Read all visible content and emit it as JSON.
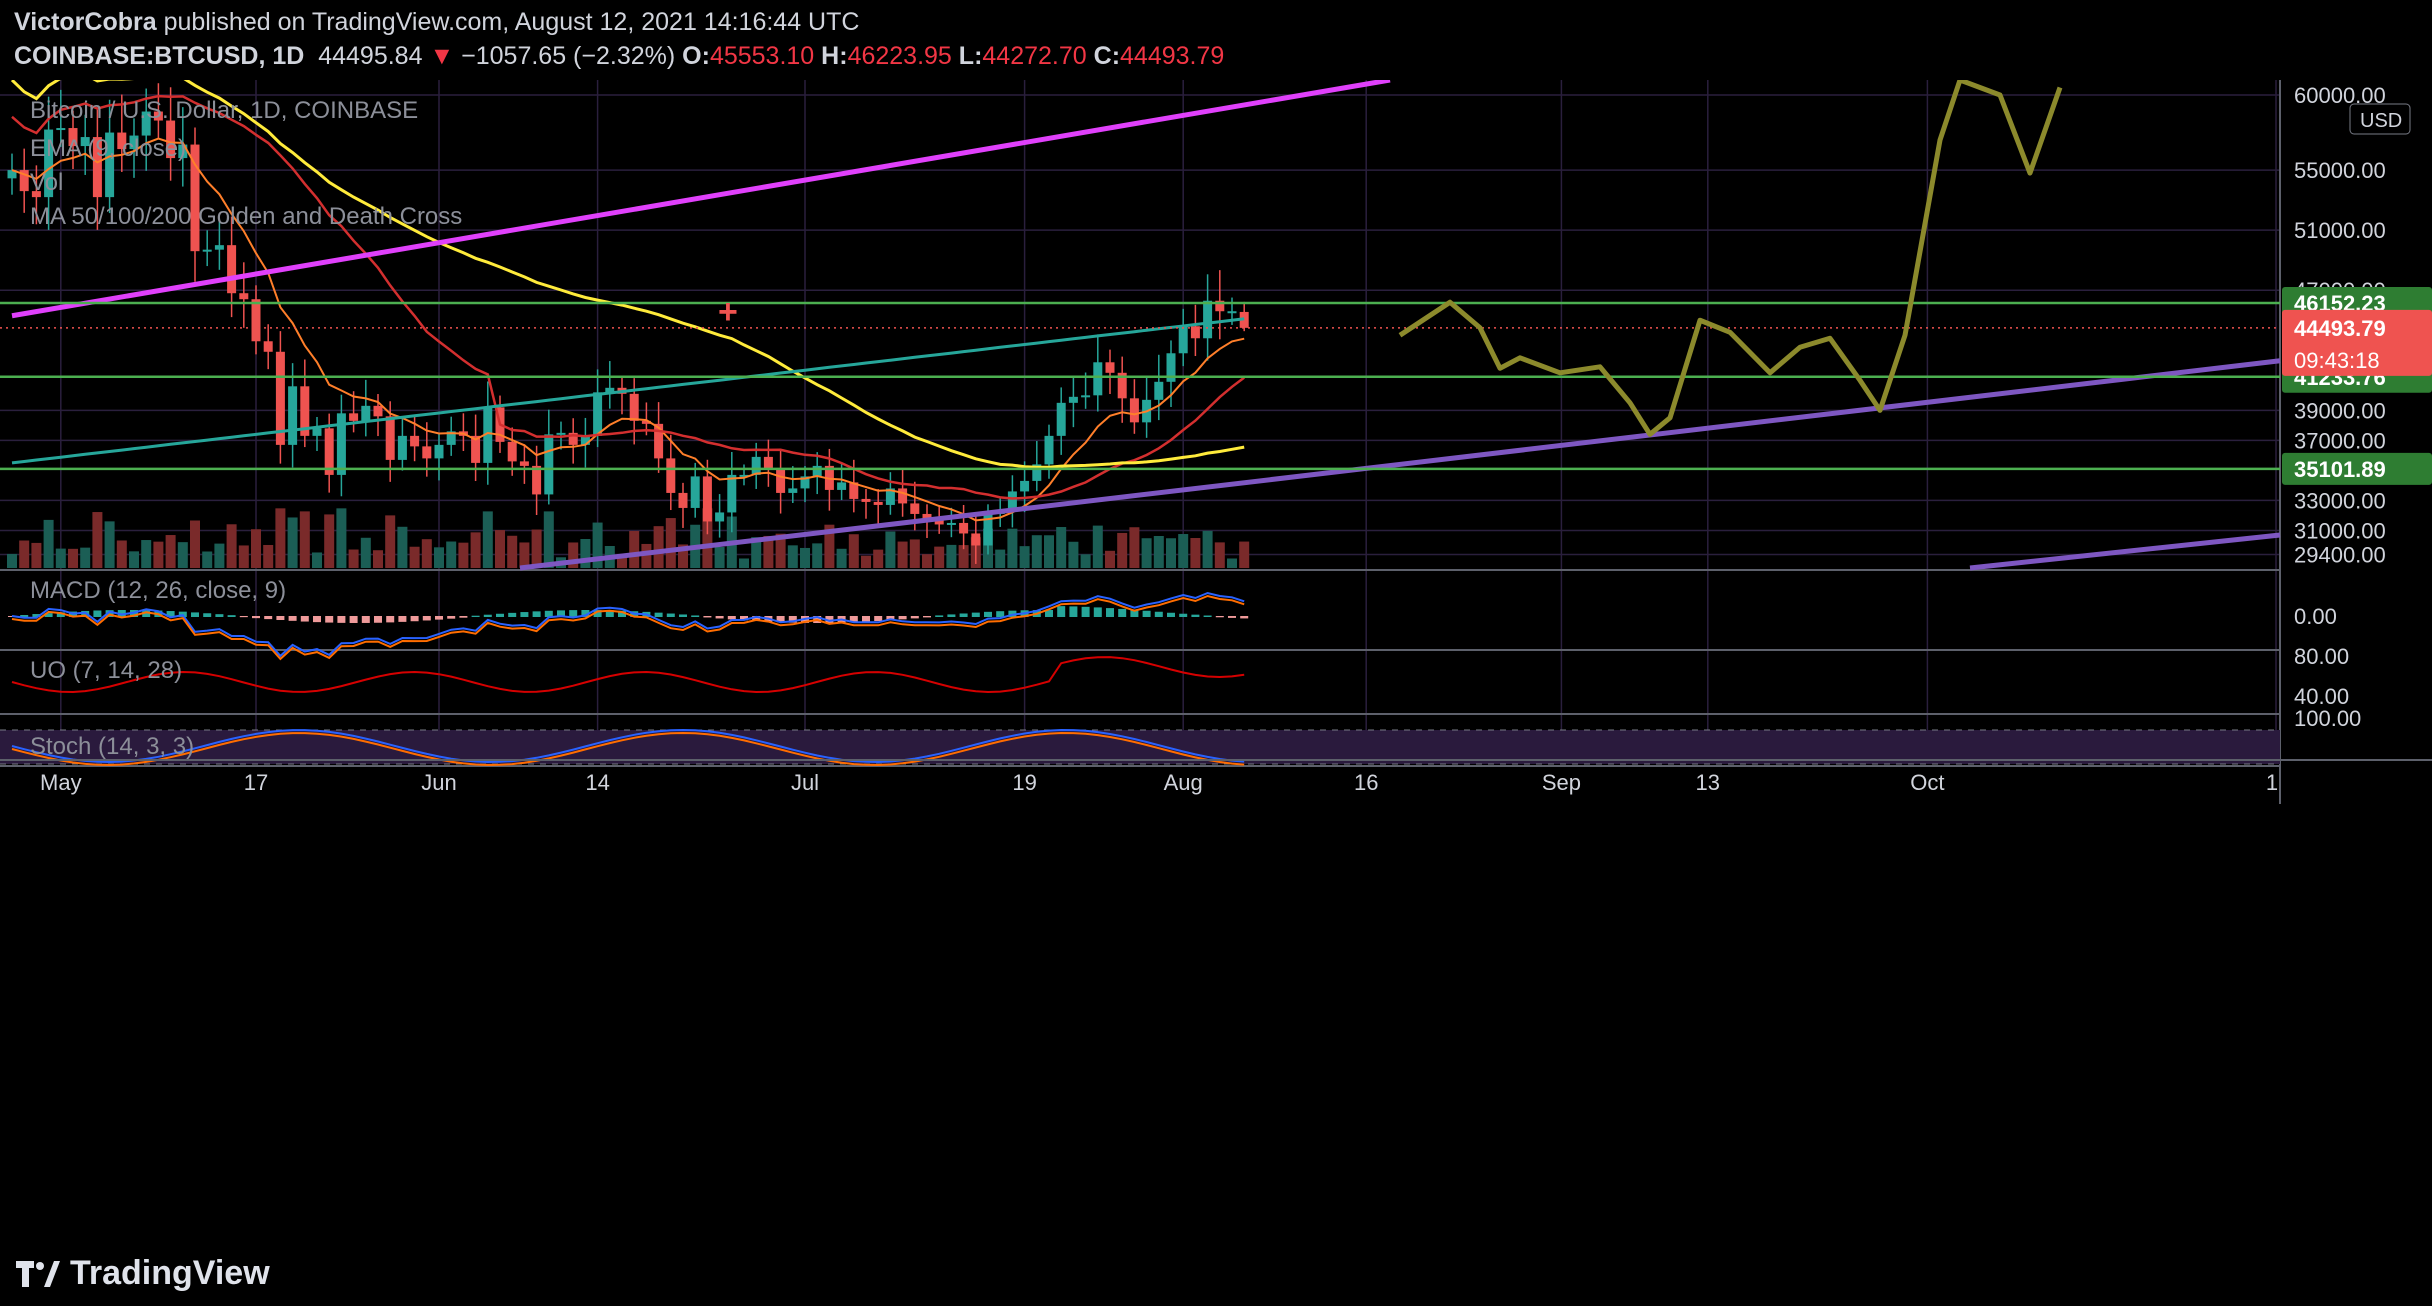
{
  "header": {
    "author": "VictorCobra",
    "published_text": "published on TradingView.com, August 12, 2021 14:16:44 UTC",
    "symbol": "COINBASE:BTCUSD, 1D",
    "last": "44495.84",
    "change": "−1057.65 (−2.32%)",
    "o_label": "O:",
    "o": "45553.10",
    "h_label": "H:",
    "h": "46223.95",
    "l_label": "L:",
    "l": "44272.70",
    "c_label": "C:",
    "c": "44493.79"
  },
  "legend": {
    "title": "Bitcoin / U.S. Dollar, 1D, COINBASE",
    "ema": "EMA (9, close)",
    "vol": "Vol",
    "ma": "MA 50/100/200 Golden and Death Cross"
  },
  "panes": {
    "macd_label": "MACD (12, 26, close, 9)",
    "uo_label": "UO (7, 14, 28)",
    "stoch_label": "Stoch (14, 3, 3)"
  },
  "price_badges": {
    "currency": "USD",
    "last_price": "44493.79",
    "countdown": "09:43:18",
    "level_46": "46152.23",
    "level_41": "41233.76",
    "level_35": "35101.89"
  },
  "footer": {
    "brand": "TradingView"
  },
  "colors": {
    "up": "#26a69a",
    "down": "#ef5350",
    "ema": "#ff7f2a",
    "ma50": "#d32f2f",
    "ma100": "#ffeb3b",
    "ma200": "#26a69a",
    "magenta": "#e040fb",
    "purple": "#7e57c2",
    "level": "#4caf50",
    "forecast": "#8c8a2c"
  },
  "chart_data": {
    "type": "candlestick",
    "symbol": "COINBASE:BTCUSD",
    "timeframe": "1D",
    "price_axis": {
      "ticks": [
        60000,
        55000,
        51000,
        47000,
        39000,
        37000,
        33000,
        31000,
        29400
      ],
      "tick_labels": [
        "60000.00",
        "55000.00",
        "51000.00",
        "47000.00",
        "39000.00",
        "37000.00",
        "33000.00",
        "31000.00",
        "29400.00"
      ],
      "range": [
        28500,
        61000
      ]
    },
    "time_axis": {
      "labels": [
        "May",
        "17",
        "Jun",
        "14",
        "Jul",
        "19",
        "Aug",
        "16",
        "Sep",
        "13",
        "Oct",
        "1"
      ],
      "label_dates": [
        "2021-05-01",
        "2021-05-17",
        "2021-06-01",
        "2021-06-14",
        "2021-07-01",
        "2021-07-19",
        "2021-08-01",
        "2021-08-16",
        "2021-09-01",
        "2021-09-13",
        "2021-10-01",
        "2021-11-01"
      ]
    },
    "close_series": {
      "start_date": "2021-04-27",
      "values": [
        55000,
        53600,
        53200,
        57700,
        57800,
        56600,
        57200,
        53200,
        57500,
        56400,
        57300,
        58900,
        58300,
        55800,
        56700,
        49600,
        49700,
        50000,
        46800,
        46400,
        43600,
        42900,
        36700,
        40600,
        37300,
        37800,
        34700,
        38800,
        38300,
        39300,
        38600,
        35700,
        37300,
        36600,
        35800,
        36700,
        37600,
        37300,
        35500,
        39200,
        36900,
        35600,
        35300,
        33400,
        37400,
        37500,
        36700,
        37300,
        40200,
        40500,
        40100,
        38300,
        38100,
        35800,
        33500,
        32500,
        34600,
        31600,
        32200,
        34700,
        34700,
        35900,
        35100,
        33500,
        33800,
        34600,
        35300,
        33700,
        34200,
        33100,
        32900,
        32700,
        33800,
        32800,
        32100,
        31800,
        31400,
        31500,
        30800,
        30000,
        32100,
        32300,
        33600,
        34300,
        35400,
        37300,
        39500,
        39900,
        40000,
        42200,
        41500,
        39800,
        38200,
        39700,
        40900,
        42800,
        44600,
        43800,
        46300,
        45600,
        45600,
        44494
      ],
      "last_candle_ohlc": {
        "o": 45553.1,
        "h": 46223.95,
        "l": 44272.7,
        "c": 44493.79
      }
    },
    "horizontal_levels": [
      46152.23,
      41233.76,
      35101.89
    ],
    "last_price": 44493.79,
    "forecast_path_description": "hand-drawn projection"
  }
}
